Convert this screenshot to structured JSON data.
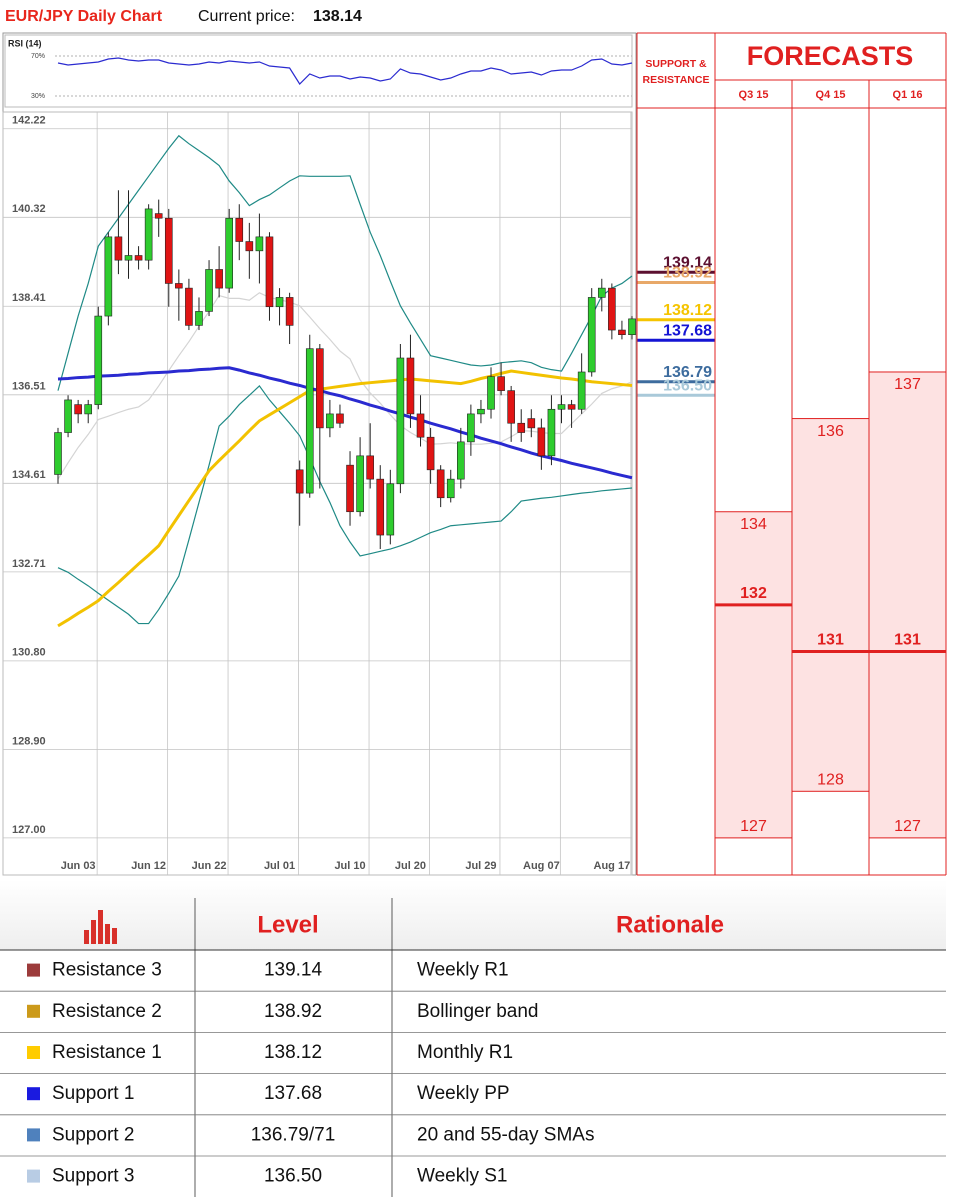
{
  "header": {
    "title": "EUR/JPY Daily Chart",
    "price_label": "Current price:",
    "price": "138.14"
  },
  "chart_data": [
    {
      "type": "line",
      "title": "RSI (14)",
      "series": [
        {
          "color": "#2b2bd0",
          "values": [
            63,
            61,
            62,
            63,
            64,
            67,
            68,
            66,
            65,
            66,
            66,
            63,
            62,
            61,
            62,
            64,
            63,
            65,
            64,
            63,
            64,
            60,
            59,
            58,
            42,
            52,
            48,
            50,
            50,
            47,
            49,
            48,
            45,
            47,
            57,
            53,
            52,
            49,
            46,
            48,
            52,
            55,
            55,
            58,
            56,
            52,
            53,
            54,
            51,
            55,
            56,
            56,
            60,
            66,
            67,
            62,
            61,
            63
          ]
        }
      ],
      "ylim": [
        19,
        91
      ],
      "yticks": [
        {
          "value": 70,
          "label": "70%"
        },
        {
          "value": 30,
          "label": "30%"
        }
      ]
    },
    {
      "type": "candlestick",
      "categories": [
        null,
        null,
        "Jun 03",
        null,
        null,
        null,
        null,
        null,
        null,
        "Jun 12",
        null,
        null,
        null,
        null,
        null,
        "Jun 22",
        null,
        null,
        null,
        null,
        null,
        null,
        "Jul 01",
        null,
        null,
        null,
        null,
        null,
        null,
        "Jul 10",
        null,
        null,
        null,
        null,
        null,
        "Jul 20",
        null,
        null,
        null,
        null,
        null,
        null,
        "Jul 29",
        null,
        null,
        null,
        null,
        null,
        "Aug 07",
        null,
        null,
        null,
        null,
        null,
        null,
        "Aug 17",
        null,
        null
      ],
      "open": [
        134.8,
        135.7,
        136.3,
        136.1,
        136.3,
        138.2,
        139.9,
        139.4,
        139.5,
        139.4,
        140.4,
        140.3,
        138.9,
        138.8,
        138.0,
        138.3,
        139.2,
        138.8,
        140.3,
        139.8,
        139.6,
        139.9,
        138.4,
        138.6,
        134.9,
        134.4,
        137.5,
        135.8,
        136.1,
        135.0,
        134.0,
        135.2,
        134.7,
        133.5,
        134.6,
        137.3,
        136.1,
        135.6,
        134.9,
        134.3,
        134.7,
        135.5,
        136.1,
        136.2,
        136.9,
        136.6,
        135.9,
        136.0,
        135.8,
        135.2,
        136.2,
        136.3,
        136.2,
        137.0,
        138.6,
        138.8,
        137.9,
        137.8
      ],
      "high": [
        135.8,
        136.5,
        136.4,
        136.4,
        138.4,
        140.0,
        140.9,
        140.9,
        139.7,
        140.6,
        140.7,
        140.5,
        139.2,
        139.0,
        138.6,
        139.4,
        139.7,
        140.5,
        140.6,
        140.2,
        140.4,
        140.0,
        138.8,
        138.7,
        135.1,
        137.8,
        137.6,
        136.4,
        136.3,
        135.3,
        135.6,
        135.9,
        135.0,
        134.9,
        137.6,
        137.8,
        136.5,
        135.8,
        135.0,
        134.9,
        135.8,
        136.3,
        136.4,
        137.1,
        137.2,
        136.7,
        136.2,
        136.2,
        136.0,
        136.5,
        136.5,
        136.4,
        137.4,
        138.8,
        139.0,
        138.9,
        138.1,
        138.2
      ],
      "low": [
        134.6,
        135.6,
        135.9,
        135.9,
        136.2,
        138.0,
        139.1,
        139.0,
        139.2,
        139.2,
        139.9,
        138.4,
        138.1,
        137.9,
        137.9,
        138.2,
        138.6,
        138.7,
        139.4,
        139.0,
        138.9,
        138.1,
        138.0,
        137.6,
        133.7,
        134.3,
        134.5,
        135.6,
        135.8,
        133.7,
        133.9,
        134.5,
        133.2,
        133.3,
        134.4,
        135.8,
        135.4,
        134.6,
        134.1,
        134.2,
        134.5,
        135.2,
        135.9,
        136.0,
        136.5,
        135.5,
        135.5,
        135.6,
        134.9,
        135.0,
        135.9,
        135.8,
        136.1,
        136.9,
        138.3,
        137.7,
        137.7,
        137.7
      ],
      "close": [
        135.7,
        136.4,
        136.1,
        136.3,
        138.2,
        139.9,
        139.4,
        139.5,
        139.4,
        140.5,
        140.3,
        138.9,
        138.8,
        138.0,
        138.3,
        139.2,
        138.8,
        140.3,
        139.8,
        139.6,
        139.9,
        138.4,
        138.6,
        138.0,
        134.4,
        137.5,
        135.8,
        136.1,
        135.9,
        134.0,
        135.2,
        134.7,
        133.5,
        134.6,
        137.3,
        136.1,
        135.6,
        134.9,
        134.3,
        134.7,
        135.5,
        136.1,
        136.2,
        136.9,
        136.6,
        135.9,
        135.7,
        135.8,
        135.2,
        136.2,
        136.3,
        136.2,
        137.0,
        138.6,
        138.8,
        137.9,
        137.8,
        138.14
      ],
      "up_color": "#2ecc2e",
      "down_color": "#e01414",
      "series": [
        {
          "color": "#1f8a86",
          "values": [
            136.6,
            137.4,
            138.2,
            138.9,
            139.7,
            140.0,
            140.3,
            140.6,
            140.9,
            141.2,
            141.5,
            141.8,
            142.07,
            141.9,
            141.75,
            141.6,
            141.43,
            141.1,
            140.85,
            140.57,
            140.7,
            140.8,
            140.95,
            141.1,
            141.21,
            141.2,
            141.2,
            141.2,
            141.2,
            141.21,
            140.6,
            140.0,
            139.5,
            138.95,
            138.42,
            138.05,
            137.7,
            137.35,
            137.3,
            137.25,
            137.2,
            137.15,
            137.13,
            137.15,
            137.2,
            137.22,
            137.24,
            137.2,
            137.1,
            137.05,
            137.02,
            137.4,
            137.8,
            138.2,
            138.63,
            138.8,
            138.9,
            139.06
          ]
        },
        {
          "color": "#1f8a86",
          "values": [
            132.8,
            132.7,
            132.55,
            132.41,
            132.25,
            132.1,
            131.95,
            131.8,
            131.6,
            131.6,
            131.9,
            132.25,
            132.62,
            133.4,
            134.2,
            135.0,
            135.84,
            136.05,
            136.3,
            136.5,
            136.7,
            136.4,
            136.15,
            135.9,
            135.63,
            135.15,
            134.65,
            134.2,
            133.7,
            133.35,
            133.05,
            133.1,
            133.15,
            133.2,
            133.27,
            133.35,
            133.45,
            133.55,
            133.62,
            133.7,
            133.72,
            133.74,
            133.76,
            133.78,
            133.8,
            134.0,
            134.23,
            134.26,
            134.29,
            134.31,
            134.34,
            134.37,
            134.4,
            134.42,
            134.45,
            134.47,
            134.49,
            134.51
          ]
        },
        {
          "color": "#d4d4d4",
          "values": [
            134.7,
            135.05,
            135.38,
            135.66,
            135.98,
            136.05,
            136.13,
            136.2,
            136.25,
            136.4,
            136.7,
            137.03,
            137.35,
            137.65,
            137.98,
            138.3,
            138.64,
            138.58,
            138.58,
            138.54,
            138.7,
            138.6,
            138.55,
            138.5,
            138.42,
            138.18,
            137.93,
            137.7,
            137.45,
            137.28,
            136.83,
            136.55,
            136.33,
            136.08,
            135.85,
            135.7,
            135.58,
            135.45,
            135.46,
            135.48,
            135.46,
            135.45,
            135.45,
            135.47,
            135.5,
            135.61,
            135.74,
            135.73,
            135.7,
            135.68,
            135.68,
            135.89,
            136.1,
            136.31,
            136.54,
            136.64,
            136.7,
            136.79
          ]
        },
        {
          "color": "#f2c200",
          "values": [
            131.55,
            131.68,
            131.82,
            131.95,
            132.09,
            132.29,
            132.48,
            132.68,
            132.88,
            133.07,
            133.27,
            133.6,
            133.92,
            134.24,
            134.56,
            134.88,
            135.1,
            135.31,
            135.52,
            135.74,
            135.95,
            136.08,
            136.21,
            136.34,
            136.47,
            136.6,
            136.63,
            136.66,
            136.69,
            136.72,
            136.75,
            136.77,
            136.79,
            136.81,
            136.83,
            136.85,
            136.83,
            136.81,
            136.79,
            136.77,
            136.75,
            136.8,
            136.86,
            136.91,
            136.97,
            137.02,
            136.99,
            136.96,
            136.93,
            136.9,
            136.87,
            136.85,
            136.82,
            136.79,
            136.77,
            136.75,
            136.73,
            136.71
          ]
        },
        {
          "color": "#2a2ad0",
          "values": [
            136.85,
            136.86,
            136.88,
            136.89,
            136.91,
            136.92,
            136.93,
            136.95,
            136.96,
            136.98,
            136.99,
            137.0,
            137.02,
            137.03,
            137.05,
            137.06,
            137.08,
            137.09,
            137.04,
            136.98,
            136.93,
            136.87,
            136.82,
            136.76,
            136.71,
            136.65,
            136.6,
            136.54,
            136.49,
            136.42,
            136.36,
            136.29,
            136.23,
            136.16,
            136.1,
            136.03,
            135.97,
            135.9,
            135.84,
            135.78,
            135.71,
            135.65,
            135.58,
            135.52,
            135.46,
            135.39,
            135.33,
            135.26,
            135.2,
            135.15,
            135.1,
            135.04,
            134.99,
            134.94,
            134.89,
            134.83,
            134.78,
            134.73
          ]
        }
      ],
      "ylim": [
        126.74,
        142.58
      ],
      "yticks": [
        {
          "value": 127,
          "label": "127.00"
        },
        {
          "value": 128.9,
          "label": "128.90"
        },
        {
          "value": 130.8,
          "label": "130.80"
        },
        132.71,
        134.61,
        136.51,
        138.41,
        140.32,
        142.22
      ],
      "grid": true
    }
  ],
  "sr_panel": {
    "title": [
      "SUPPORT &",
      "RESISTANCE"
    ],
    "values": [
      139.14,
      138.92,
      138.12,
      137.68,
      136.79,
      136.5
    ],
    "value_labels": [
      "139.14",
      "138.92",
      "138.12",
      "137.68",
      "136.79",
      "136.50"
    ],
    "colors": [
      "#5c1030",
      "#e8a868",
      "#f5c400",
      "#1414d4",
      "#3d6c9e",
      "#a9c9d9"
    ]
  },
  "forecasts": {
    "title": "FORECASTS",
    "periods": [
      "Q3 15",
      "Q4 15",
      "Q1 16"
    ],
    "high": [
      134,
      136,
      137
    ],
    "mid": [
      132,
      131,
      131
    ],
    "low": [
      127,
      128,
      127
    ]
  },
  "table": {
    "headers": [
      "Level",
      "Rationale"
    ],
    "rows": [
      {
        "name": "Resistance 3",
        "color": "#9c3b3b",
        "level": "139.14",
        "rationale": "Weekly R1"
      },
      {
        "name": "Resistance 2",
        "color": "#cc9a1a",
        "level": "138.92",
        "rationale": "Bollinger band"
      },
      {
        "name": "Resistance 1",
        "color": "#ffcc00",
        "level": "138.12",
        "rationale": "Monthly R1"
      },
      {
        "name": "Support 1",
        "color": "#1a1ae0",
        "level": "137.68",
        "rationale": "Weekly PP"
      },
      {
        "name": "Support 2",
        "color": "#4f81bd",
        "level": "136.79/71",
        "rationale": "20 and 55-day SMAs"
      },
      {
        "name": "Support 3",
        "color": "#b8cce4",
        "level": "136.50",
        "rationale": "Weekly S1"
      }
    ]
  }
}
